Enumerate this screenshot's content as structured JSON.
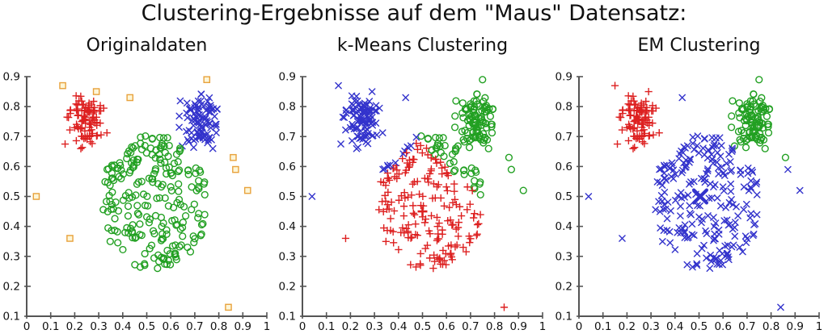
{
  "page": {
    "background": "#ffffff"
  },
  "chart_data": {
    "type": "scatter",
    "suptitle": "Clustering-Ergebnisse auf dem \"Maus\" Datensatz:",
    "xlabel": "",
    "ylabel": "",
    "xlim": [
      0,
      1
    ],
    "ylim": [
      0.1,
      0.9
    ],
    "xticks": [
      0,
      0.1,
      0.2,
      0.3,
      0.4,
      0.5,
      0.6,
      0.7,
      0.8,
      0.9,
      1
    ],
    "xtick_labels": [
      "0",
      "0.1",
      "0.2",
      "0.3",
      "0.4",
      "0.5",
      "0.6",
      "0.7",
      "0.8",
      "0.9",
      "1"
    ],
    "yticks": [
      0.1,
      0.2,
      0.3,
      0.4,
      0.5,
      0.6,
      0.7,
      0.8,
      0.9
    ],
    "ytick_labels": [
      "0.1",
      "0.2",
      "0.3",
      "0.4",
      "0.5",
      "0.6",
      "0.7",
      "0.8",
      "0.9"
    ],
    "grid": false,
    "legend": "none",
    "axis_color": "#555555",
    "tick_label_color": "#111111",
    "marker_styles": {
      "red_plus": {
        "marker": "plus",
        "color": "#dd2020"
      },
      "blue_x": {
        "marker": "x",
        "color": "#3333cc"
      },
      "green_circle": {
        "marker": "circle",
        "color": "#22a022"
      },
      "orange_square": {
        "marker": "square",
        "color": "#e8a23c",
        "fill": "#fdf6d8"
      }
    },
    "dataset": {
      "seed": 7,
      "description": "Mouse dataset: left-ear cluster, right-ear cluster, large body cluster, 10 background noise points (same points shown in all three panels)",
      "groups": [
        {
          "id": "left_ear",
          "shape": "gauss",
          "cx": 0.25,
          "cy": 0.75,
          "sd": 0.04,
          "count": 95
        },
        {
          "id": "right_ear",
          "shape": "gauss",
          "cx": 0.725,
          "cy": 0.745,
          "sd": 0.043,
          "count": 95
        },
        {
          "id": "body",
          "shape": "disc",
          "cx": 0.53,
          "cy": 0.48,
          "r": 0.225,
          "count": 235
        },
        {
          "id": "noise",
          "shape": "points",
          "pts": [
            [
              0.15,
              0.87
            ],
            [
              0.29,
              0.85
            ],
            [
              0.43,
              0.83
            ],
            [
              0.75,
              0.89
            ],
            [
              0.86,
              0.63
            ],
            [
              0.87,
              0.59
            ],
            [
              0.92,
              0.52
            ],
            [
              0.04,
              0.5
            ],
            [
              0.18,
              0.36
            ],
            [
              0.84,
              0.13
            ]
          ]
        }
      ]
    },
    "panels": [
      {
        "key": "original",
        "title": "Originaldaten",
        "mode": "groups",
        "group_styles": [
          "red_plus",
          "blue_x",
          "green_circle",
          "orange_square"
        ]
      },
      {
        "key": "kmeans",
        "title": "k-Means Clustering",
        "mode": "nearest",
        "show_centroids": true,
        "centroids": [
          {
            "x": 0.255,
            "y": 0.755,
            "style": "blue_x"
          },
          {
            "x": 0.5,
            "y": 0.45,
            "style": "red_plus"
          },
          {
            "x": 0.715,
            "y": 0.745,
            "style": "green_circle"
          }
        ]
      },
      {
        "key": "em",
        "title": "EM Clustering",
        "mode": "groups",
        "show_means": true,
        "group_styles": [
          "red_plus",
          "green_circle",
          "blue_x",
          "blue_x"
        ],
        "noise_styles": [
          "red_plus",
          "red_plus",
          "blue_x",
          "green_circle",
          "green_circle",
          "blue_x",
          "blue_x",
          "blue_x",
          "blue_x",
          "blue_x"
        ],
        "means": [
          {
            "x": 0.25,
            "y": 0.755,
            "style": "red_plus",
            "big": false
          },
          {
            "x": 0.745,
            "y": 0.735,
            "style": "green_circle",
            "big": false
          },
          {
            "x": 0.505,
            "y": 0.5,
            "style": "blue_x",
            "big": true
          }
        ]
      }
    ]
  }
}
